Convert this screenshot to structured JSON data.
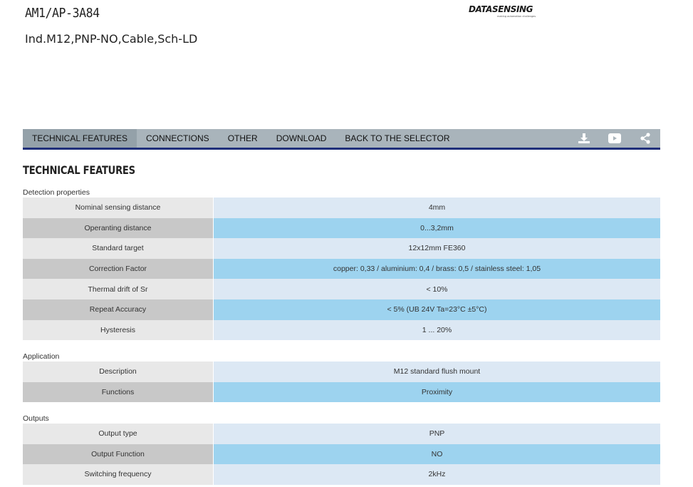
{
  "product": {
    "code": "AM1/AP-3A84",
    "description": "Ind.M12,PNP-NO,Cable,Sch-LD"
  },
  "logo": {
    "text": "DATASENSING",
    "tagline": "making automation challenges"
  },
  "tabs": [
    {
      "label": "TECHNICAL FEATURES",
      "active": true
    },
    {
      "label": "CONNECTIONS",
      "active": false
    },
    {
      "label": "OTHER",
      "active": false
    },
    {
      "label": "DOWNLOAD",
      "active": false
    },
    {
      "label": "BACK TO THE SELECTOR",
      "active": false
    }
  ],
  "tab_icons": [
    "download-icon",
    "youtube-icon",
    "share-icon"
  ],
  "section_title": "TECHNICAL FEATURES",
  "groups": [
    {
      "label": "Detection properties",
      "rows": [
        {
          "name": "Nominal sensing distance",
          "value": "4mm"
        },
        {
          "name": "Operanting distance",
          "value": "0...3,2mm"
        },
        {
          "name": "Standard target",
          "value": "12x12mm FE360"
        },
        {
          "name": "Correction Factor",
          "value": "copper: 0,33 / aluminium: 0,4 / brass: 0,5 / stainless steel: 1,05"
        },
        {
          "name": "Thermal drift of Sr",
          "value": "< 10%"
        },
        {
          "name": "Repeat Accuracy",
          "value": "< 5% (UB 24V Ta=23°C ±5°C)"
        },
        {
          "name": "Hysteresis",
          "value": "1 ... 20%"
        }
      ]
    },
    {
      "label": "Application",
      "rows": [
        {
          "name": "Description",
          "value": "M12 standard flush mount"
        },
        {
          "name": "Functions",
          "value": "Proximity"
        }
      ]
    },
    {
      "label": "Outputs",
      "rows": [
        {
          "name": "Output type",
          "value": "PNP"
        },
        {
          "name": "Output Function",
          "value": "NO"
        },
        {
          "name": "Switching frequency",
          "value": "2kHz"
        }
      ]
    }
  ]
}
